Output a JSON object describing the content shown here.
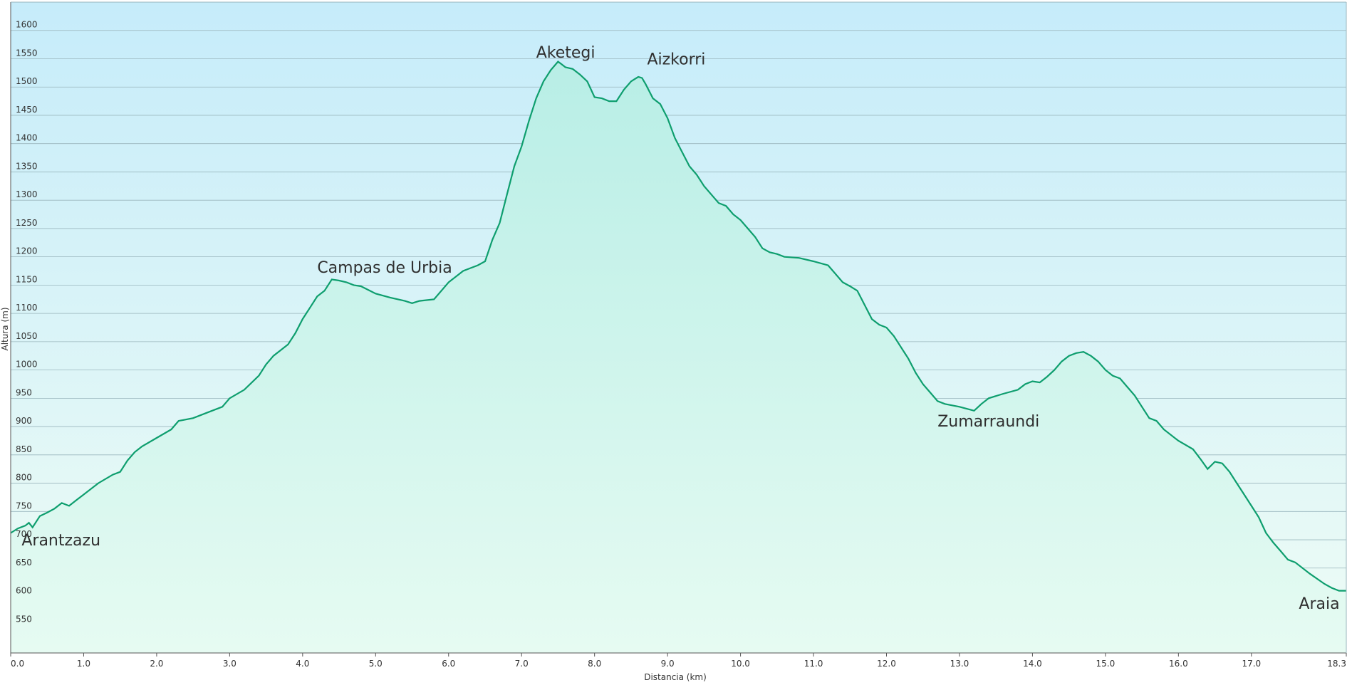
{
  "chart_data": {
    "type": "area",
    "xlabel": "Distancia  (km)",
    "ylabel": "Altura (m)",
    "xlim": [
      0,
      18.3
    ],
    "ylim": [
      500,
      1650
    ],
    "x_ticks": [
      0,
      1,
      2,
      3,
      4,
      5,
      6,
      7,
      8,
      9,
      10,
      11,
      12,
      13,
      14,
      15,
      16,
      17,
      18.3
    ],
    "x_tick_labels": [
      "0.0",
      "1.0",
      "2.0",
      "3.0",
      "4.0",
      "5.0",
      "6.0",
      "7.0",
      "8.0",
      "9.0",
      "10.0",
      "11.0",
      "12.0",
      "13.0",
      "14.0",
      "15.0",
      "16.0",
      "17.0",
      "18.3"
    ],
    "y_ticks": [
      550,
      600,
      650,
      700,
      750,
      800,
      850,
      900,
      950,
      1000,
      1050,
      1100,
      1150,
      1200,
      1250,
      1300,
      1350,
      1400,
      1450,
      1500,
      1550,
      1600
    ],
    "y_tick_labels": [
      "550",
      "600",
      "650",
      "700",
      "750",
      "800",
      "850",
      "900",
      "950",
      "1000",
      "1050",
      "1100",
      "1150",
      "1200",
      "1250",
      "1300",
      "1350",
      "1400",
      "1450",
      "1500",
      "1550",
      "1600"
    ],
    "grid": true,
    "colors": {
      "line": "#0e9e6e",
      "fill_top": "#b8eee6",
      "fill_bottom": "#e6fbf2",
      "bg_top": "#c6ecfa",
      "bg_bottom": "#eefcf5",
      "grid": "#9ab6bd"
    },
    "series": [
      {
        "x": [
          0,
          0.1,
          0.2,
          0.25,
          0.3,
          0.4,
          0.5,
          0.6,
          0.7,
          0.8,
          0.9,
          1.0,
          1.2,
          1.4,
          1.5,
          1.6,
          1.7,
          1.8,
          2.0,
          2.2,
          2.3,
          2.5,
          2.7,
          2.9,
          3.0,
          3.2,
          3.4,
          3.5,
          3.6,
          3.7,
          3.8,
          3.9,
          4.0,
          4.1,
          4.2,
          4.3,
          4.4,
          4.5,
          4.6,
          4.7,
          4.8,
          5.0,
          5.2,
          5.4,
          5.5,
          5.6,
          5.8,
          6.0,
          6.2,
          6.3,
          6.4,
          6.5,
          6.6,
          6.7,
          6.8,
          6.9,
          7.0,
          7.1,
          7.2,
          7.3,
          7.4,
          7.5,
          7.55,
          7.6,
          7.7,
          7.8,
          7.9,
          8.0,
          8.1,
          8.2,
          8.3,
          8.4,
          8.5,
          8.6,
          8.65,
          8.7,
          8.8,
          8.9,
          9.0,
          9.1,
          9.2,
          9.3,
          9.4,
          9.5,
          9.6,
          9.7,
          9.8,
          9.9,
          10.0,
          10.1,
          10.2,
          10.3,
          10.4,
          10.5,
          10.6,
          10.8,
          11.0,
          11.2,
          11.4,
          11.5,
          11.6,
          11.7,
          11.8,
          11.9,
          12.0,
          12.1,
          12.2,
          12.3,
          12.4,
          12.5,
          12.6,
          12.7,
          12.8,
          13.0,
          13.2,
          13.3,
          13.4,
          13.6,
          13.8,
          13.9,
          14.0,
          14.1,
          14.2,
          14.3,
          14.4,
          14.5,
          14.6,
          14.7,
          14.8,
          14.9,
          15.0,
          15.1,
          15.2,
          15.3,
          15.4,
          15.5,
          15.6,
          15.7,
          15.8,
          16.0,
          16.2,
          16.3,
          16.4,
          16.5,
          16.6,
          16.7,
          16.8,
          16.9,
          17.0,
          17.1,
          17.2,
          17.3,
          17.4,
          17.5,
          17.6,
          17.8,
          18.0,
          18.1,
          18.2,
          18.3
        ],
        "y": [
          712,
          720,
          725,
          730,
          722,
          742,
          748,
          755,
          765,
          760,
          770,
          780,
          800,
          815,
          820,
          840,
          855,
          865,
          880,
          895,
          910,
          915,
          925,
          935,
          950,
          965,
          990,
          1010,
          1025,
          1035,
          1045,
          1065,
          1090,
          1110,
          1130,
          1140,
          1160,
          1158,
          1155,
          1150,
          1148,
          1135,
          1128,
          1122,
          1118,
          1122,
          1125,
          1155,
          1175,
          1180,
          1185,
          1192,
          1230,
          1260,
          1310,
          1360,
          1395,
          1440,
          1480,
          1510,
          1530,
          1545,
          1540,
          1535,
          1532,
          1522,
          1510,
          1482,
          1480,
          1475,
          1475,
          1495,
          1510,
          1518,
          1516,
          1505,
          1480,
          1470,
          1445,
          1410,
          1385,
          1360,
          1345,
          1325,
          1310,
          1295,
          1290,
          1275,
          1265,
          1250,
          1235,
          1215,
          1208,
          1205,
          1200,
          1198,
          1192,
          1185,
          1155,
          1148,
          1140,
          1115,
          1090,
          1080,
          1075,
          1060,
          1040,
          1020,
          995,
          975,
          960,
          945,
          940,
          935,
          928,
          940,
          950,
          958,
          965,
          975,
          980,
          978,
          988,
          1000,
          1015,
          1025,
          1030,
          1032,
          1025,
          1015,
          1000,
          990,
          985,
          970,
          955,
          935,
          915,
          910,
          895,
          875,
          860,
          843,
          825,
          838,
          835,
          820,
          800,
          780,
          760,
          740,
          712,
          695,
          680,
          665,
          660,
          640,
          622,
          615,
          610,
          610
        ]
      }
    ],
    "annotations": [
      {
        "label": "Arantzazu",
        "x": 0.15,
        "y": 690
      },
      {
        "label": "Campas de Urbia",
        "x": 4.2,
        "y": 1172
      },
      {
        "label": "Aketegi",
        "x": 7.2,
        "y": 1552
      },
      {
        "label": "Aizkorri",
        "x": 8.72,
        "y": 1540
      },
      {
        "label": "Zumarraundi",
        "x": 12.7,
        "y": 900
      },
      {
        "label": "Araia",
        "x": 17.65,
        "y": 578
      }
    ]
  }
}
